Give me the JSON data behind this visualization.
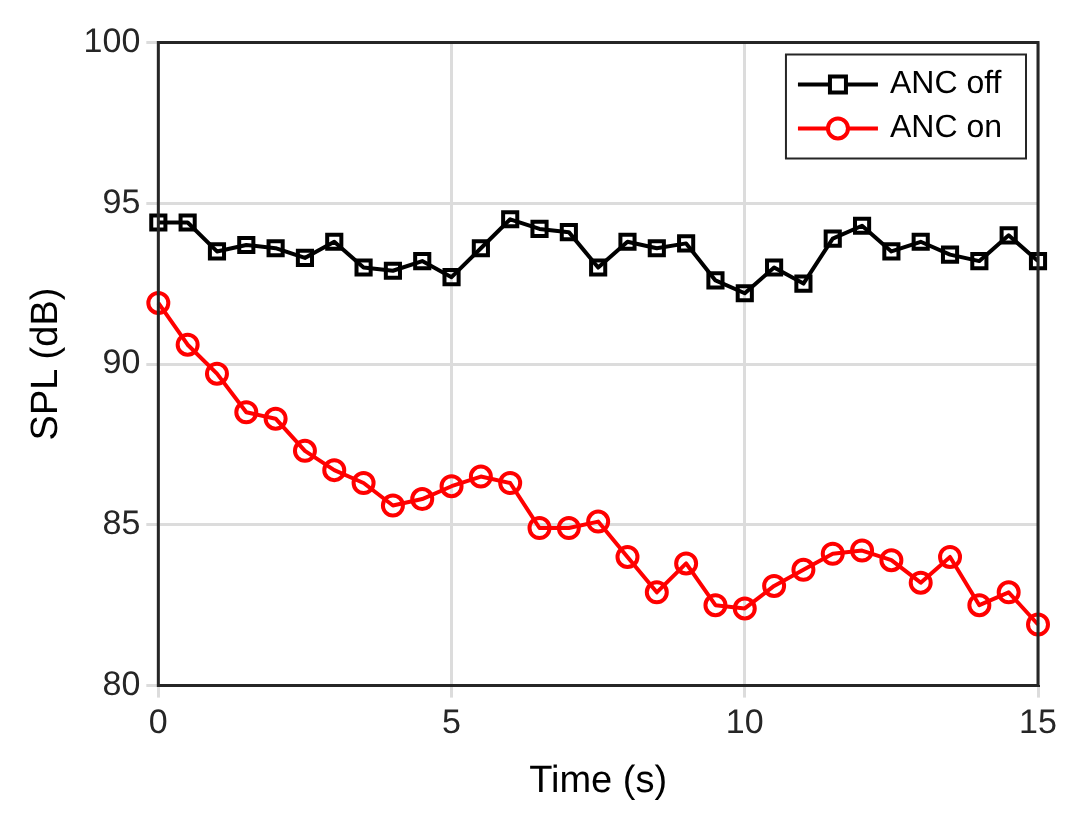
{
  "chart_data": {
    "type": "line",
    "xlabel": "Time (s)",
    "ylabel": "SPL (dB)",
    "x": [
      0,
      0.5,
      1,
      1.5,
      2,
      2.5,
      3,
      3.5,
      4,
      4.5,
      5,
      5.5,
      6,
      6.5,
      7,
      7.5,
      8,
      8.5,
      9,
      9.5,
      10,
      10.5,
      11,
      11.5,
      12,
      12.5,
      13,
      13.5,
      14,
      14.5,
      15
    ],
    "series": [
      {
        "name": "ANC off",
        "color": "#000000",
        "marker": "square",
        "values": [
          94.4,
          94.4,
          93.5,
          93.7,
          93.6,
          93.3,
          93.8,
          93.0,
          92.9,
          93.2,
          92.7,
          93.6,
          94.5,
          94.2,
          94.1,
          93.0,
          93.8,
          93.6,
          93.75,
          92.6,
          92.2,
          93.0,
          92.5,
          93.9,
          94.3,
          93.5,
          93.8,
          93.4,
          93.2,
          94.0,
          93.2
        ]
      },
      {
        "name": "ANC on",
        "color": "#ff0000",
        "marker": "circle",
        "values": [
          91.9,
          90.6,
          89.7,
          88.5,
          88.3,
          87.3,
          86.7,
          86.3,
          85.6,
          85.8,
          86.2,
          86.5,
          86.3,
          84.9,
          84.9,
          85.1,
          84.0,
          82.9,
          83.8,
          82.5,
          82.4,
          83.1,
          83.6,
          84.1,
          84.2,
          83.9,
          83.2,
          84.0,
          82.5,
          82.9,
          81.9
        ]
      }
    ],
    "xlim": [
      0,
      15
    ],
    "xticks": [
      0,
      5,
      10,
      15
    ],
    "ylim": [
      80,
      100
    ],
    "yticks": [
      80,
      85,
      90,
      95,
      100
    ],
    "grid": true,
    "legend": "top right",
    "line_style": "solid"
  }
}
